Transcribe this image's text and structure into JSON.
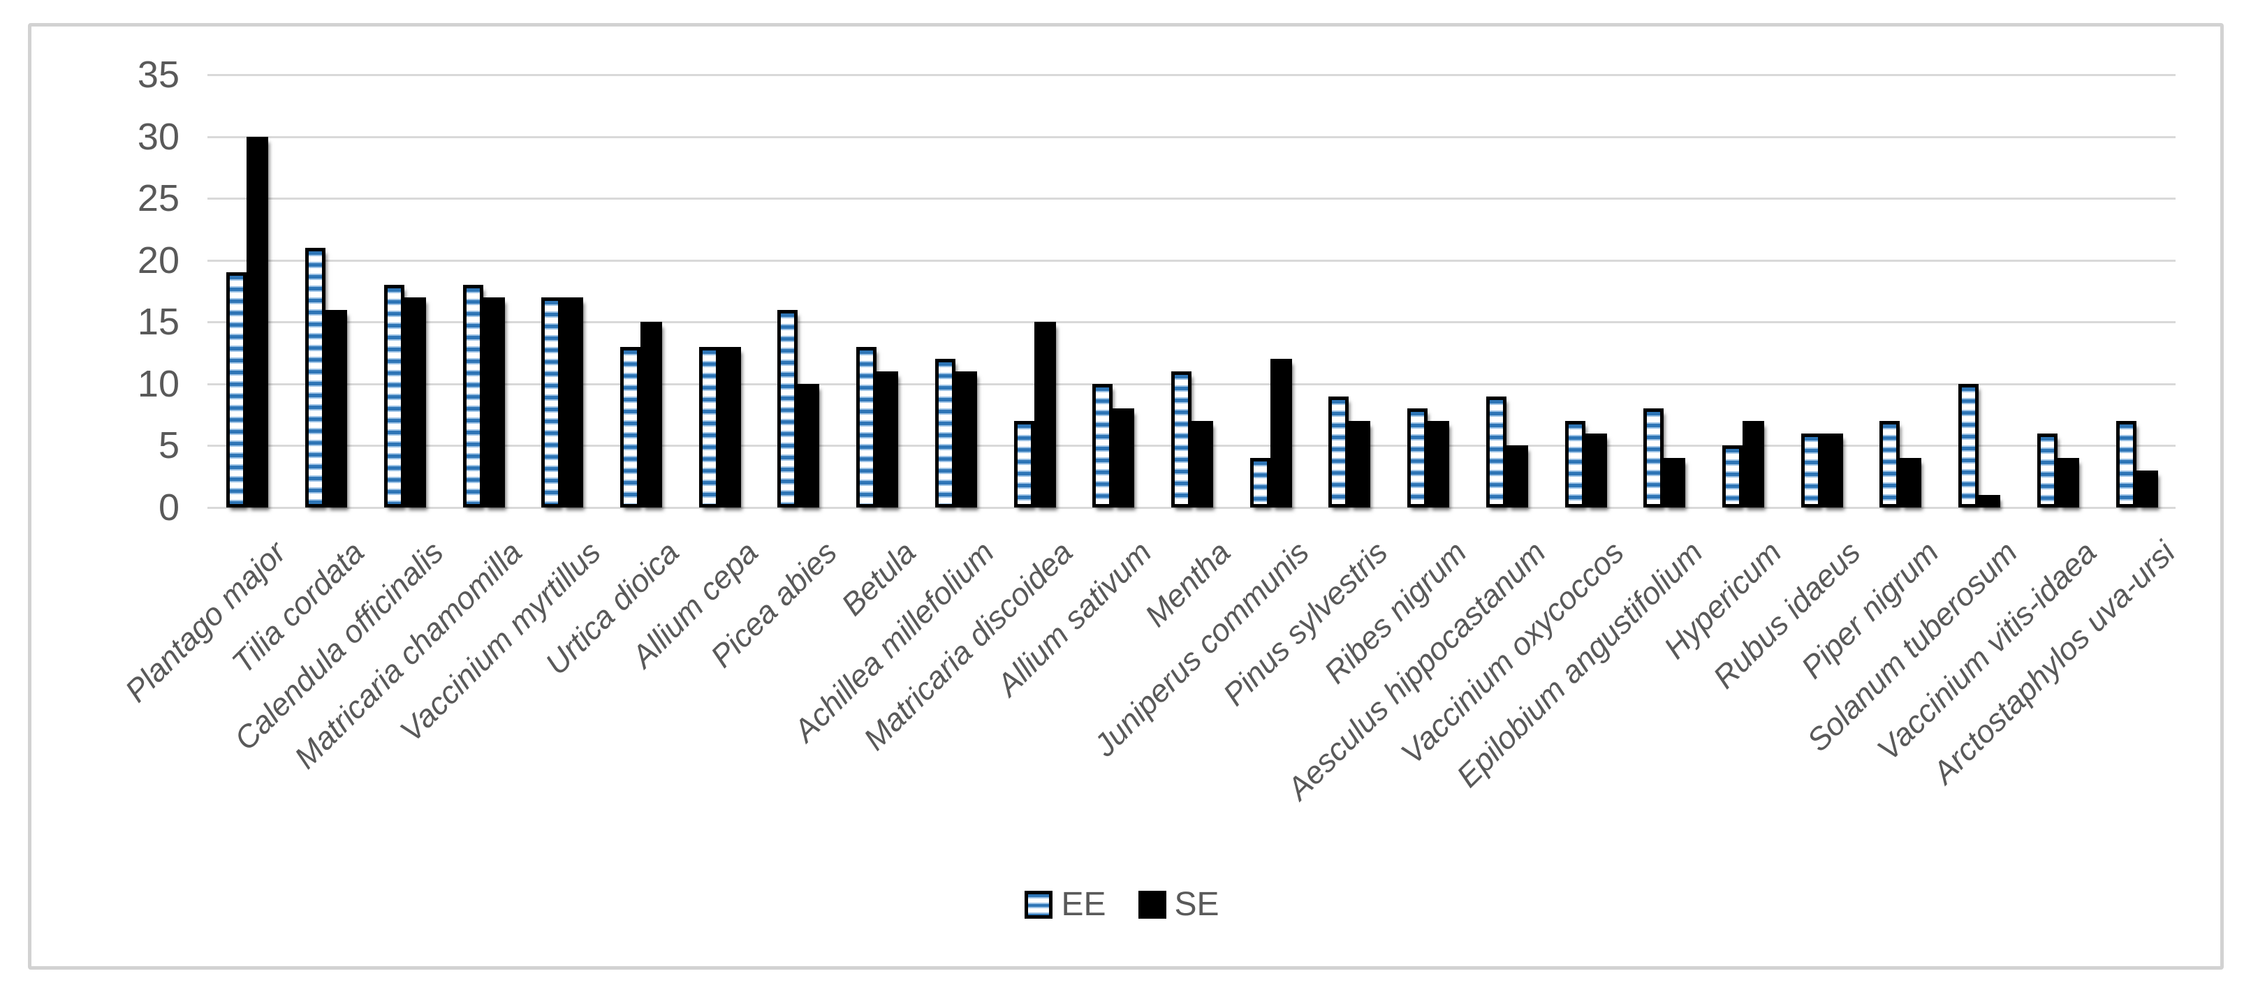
{
  "chart_data": {
    "type": "bar",
    "title": "",
    "xlabel": "",
    "ylabel": "",
    "categories": [
      "Plantago major",
      "Tilia cordata",
      "Calendula officinalis",
      "Matricaria chamomilla",
      "Vaccinium myrtillus",
      "Urtica dioica",
      "Allium cepa",
      "Picea abies",
      "Betula",
      "Achillea millefolium",
      "Matricaria discoidea",
      "Allium sativum",
      "Mentha",
      "Juniperus communis",
      "Pinus sylvestris",
      "Ribes nigrum",
      "Aesculus hippocastanum",
      "Vaccinium oxycoccos",
      "Epilobium angustifolium",
      "Hypericum",
      "Rubus idaeus",
      "Piper nigrum",
      "Solanum tuberosum",
      "Vaccinium vitis-idaea",
      "Arctostaphylos uva-ursi"
    ],
    "series": [
      {
        "name": "EE",
        "values": [
          19,
          21,
          18,
          18,
          17,
          13,
          13,
          16,
          13,
          12,
          7,
          10,
          11,
          4,
          9,
          8,
          9,
          7,
          8,
          5,
          6,
          7,
          10,
          6,
          7
        ]
      },
      {
        "name": "SE",
        "values": [
          30,
          16,
          17,
          17,
          17,
          15,
          13,
          10,
          11,
          11,
          15,
          8,
          7,
          12,
          7,
          7,
          5,
          6,
          4,
          7,
          6,
          4,
          1,
          4,
          3
        ]
      }
    ],
    "ylim": [
      0,
      35
    ],
    "yticks": [
      0,
      5,
      10,
      15,
      20,
      25,
      30,
      35
    ],
    "grid": "horizontal gridlines on",
    "legend_position": "bottom-center",
    "x_tick_label_style": "italic, rotated 45 degrees",
    "colors": {
      "ee_stripe": "#2e75b6",
      "ee_stripe_light": "#9dc3e6",
      "ee_background": "#ffffff",
      "ee_border": "#000000",
      "se_fill": "#000000",
      "axis_text": "#595959",
      "gridline": "#d9d9d9",
      "frame_border": "#d2d2d2"
    }
  },
  "legend": {
    "items": [
      {
        "label": "EE",
        "swatch": "striped-swatch"
      },
      {
        "label": "SE",
        "swatch": "solid-black-swatch"
      }
    ]
  }
}
